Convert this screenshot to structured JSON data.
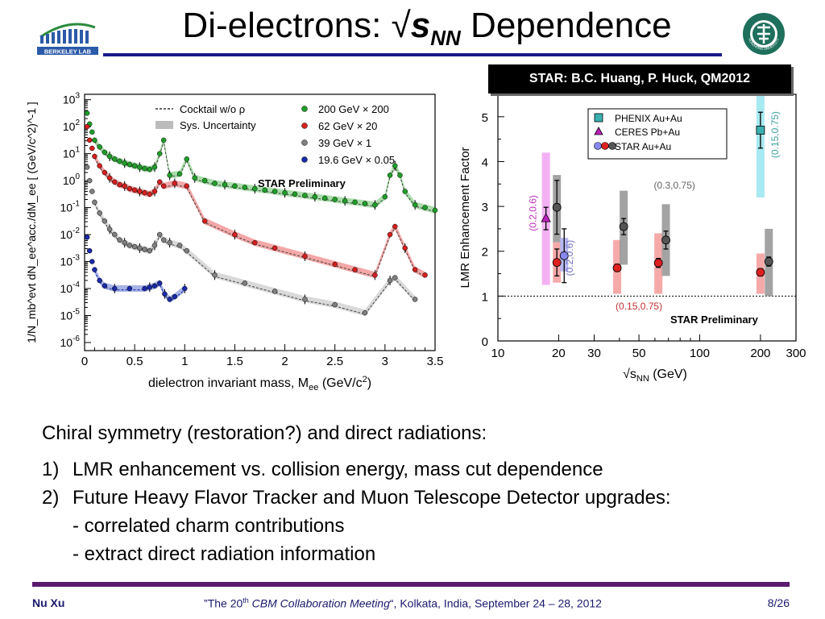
{
  "slide": {
    "title_prefix": "Di-electrons: √",
    "title_s": "s",
    "title_sub": "NN",
    "title_suffix": " Dependence",
    "logo_left_text": "BERKELEY LAB",
    "logo_right_text": "HUAZHONG UNIVERSITY",
    "credit": "STAR: B.C. Huang, P. Huck, QM2012",
    "bullets_intro": "Chiral symmetry (restoration?) and direct radiations:",
    "bullets": [
      {
        "num": "1)",
        "text": "LMR enhancement vs. collision energy, mass cut dependence"
      },
      {
        "num": "2)",
        "text": "Future Heavy Flavor Tracker and Muon Telescope Detector upgrades:"
      }
    ],
    "sub_bullets": [
      "- correlated charm contributions",
      "- extract direct radiation information"
    ],
    "footer_left": "Nu Xu",
    "footer_center_pre": "”The 20",
    "footer_center_sup": "th",
    "footer_center_em": " CBM Collaboration Meeting",
    "footer_center_post": "“, Kolkata, India, September 24 – 28,  2012",
    "footer_right": "8/26"
  },
  "chart_data": [
    {
      "type": "scatter",
      "xlabel": "dielectron invariant mass, M",
      "xlabel_sub": "ee",
      "xlabel_unit": " (GeV/c",
      "xlabel_sup": "2",
      "xlabel_close": ")",
      "ylabel": "1/N_mb^evt dN_ee^acc./dM_ee [ (GeV/c^2)^-1 ]",
      "xlim": [
        0,
        3.5
      ],
      "ylim_log10": [
        -6.3,
        3.2
      ],
      "log_y": true,
      "x_ticks": [
        "0",
        "0.5",
        "1",
        "1.5",
        "2",
        "2.5",
        "3",
        "3.5"
      ],
      "y_ticks": [
        3,
        2,
        1,
        0,
        -1,
        -2,
        -3,
        -4,
        -5,
        -6
      ],
      "annotation": "STAR Preliminary",
      "legend_left": [
        {
          "label": "Cocktail w/o ρ",
          "style": "dashed",
          "color": "#333333"
        },
        {
          "label": "Sys. Uncertainty",
          "style": "band",
          "color": "#bbbbbb"
        }
      ],
      "series": [
        {
          "name": "200 GeV × 200",
          "color": "#1f9e2a",
          "band": "#8fd38f",
          "x": [
            0.025,
            0.05,
            0.075,
            0.1,
            0.15,
            0.2,
            0.25,
            0.3,
            0.35,
            0.4,
            0.45,
            0.5,
            0.55,
            0.6,
            0.65,
            0.7,
            0.75,
            0.79,
            0.85,
            0.95,
            1.02,
            1.1,
            1.2,
            1.3,
            1.4,
            1.5,
            1.6,
            1.7,
            1.8,
            1.9,
            2.0,
            2.1,
            2.2,
            2.3,
            2.4,
            2.5,
            2.6,
            2.7,
            2.8,
            2.9,
            3.0,
            3.05,
            3.1,
            3.15,
            3.2,
            3.3,
            3.4,
            3.5
          ],
          "logy": [
            2.5,
            2.1,
            1.8,
            1.5,
            1.25,
            1.05,
            0.9,
            0.8,
            0.72,
            0.65,
            0.6,
            0.55,
            0.5,
            0.45,
            0.42,
            0.5,
            1.0,
            1.5,
            0.2,
            0.25,
            0.8,
            0.1,
            0.0,
            -0.1,
            -0.15,
            -0.2,
            -0.25,
            -0.3,
            -0.35,
            -0.4,
            -0.45,
            -0.5,
            -0.55,
            -0.6,
            -0.65,
            -0.7,
            -0.75,
            -0.8,
            -0.85,
            -0.9,
            -0.6,
            0.2,
            0.55,
            0.2,
            -0.4,
            -0.9,
            -1.0,
            -1.1
          ]
        },
        {
          "name": "62 GeV × 20",
          "color": "#d42020",
          "band": "#f08a8a",
          "x": [
            0.025,
            0.05,
            0.075,
            0.1,
            0.15,
            0.2,
            0.25,
            0.3,
            0.35,
            0.4,
            0.45,
            0.5,
            0.55,
            0.6,
            0.65,
            0.7,
            0.75,
            0.79,
            0.9,
            1.02,
            1.2,
            1.5,
            1.7,
            1.9,
            2.2,
            2.5,
            2.7,
            2.9,
            3.05,
            3.1,
            3.2,
            3.3,
            3.4
          ],
          "logy": [
            2.0,
            1.5,
            1.2,
            0.9,
            0.55,
            0.3,
            0.1,
            -0.05,
            -0.15,
            -0.2,
            -0.3,
            -0.35,
            -0.4,
            -0.45,
            -0.5,
            -0.4,
            -0.05,
            -0.2,
            -0.1,
            -0.2,
            -1.5,
            -2.0,
            -2.3,
            -2.5,
            -2.8,
            -3.1,
            -3.3,
            -3.5,
            -2.0,
            -1.7,
            -2.5,
            -3.3,
            -3.5
          ]
        },
        {
          "name": "39 GeV × 1",
          "color": "#808080",
          "band": "#cccccc",
          "x": [
            0.025,
            0.05,
            0.075,
            0.1,
            0.15,
            0.2,
            0.25,
            0.3,
            0.35,
            0.4,
            0.45,
            0.5,
            0.55,
            0.6,
            0.65,
            0.7,
            0.75,
            0.79,
            0.85,
            0.95,
            1.02,
            1.3,
            1.6,
            1.9,
            2.2,
            2.5,
            2.8,
            3.05,
            3.1,
            3.3
          ],
          "logy": [
            0.5,
            0.0,
            -0.4,
            -0.8,
            -1.2,
            -1.5,
            -1.8,
            -2.0,
            -2.2,
            -2.3,
            -2.4,
            -2.45,
            -2.5,
            -2.55,
            -2.6,
            -2.4,
            -2.0,
            -2.2,
            -2.3,
            -2.4,
            -2.6,
            -3.5,
            -3.8,
            -4.1,
            -4.4,
            -4.6,
            -4.9,
            -3.7,
            -3.6,
            -4.4
          ]
        },
        {
          "name": "19.6 GeV × 0.05",
          "color": "#1a2aa8",
          "band": "#8899dd",
          "x": [
            0.025,
            0.05,
            0.075,
            0.1,
            0.15,
            0.2,
            0.3,
            0.45,
            0.6,
            0.65,
            0.7,
            0.75,
            0.8,
            0.85,
            0.9,
            1.0
          ],
          "logy": [
            -2.1,
            -2.6,
            -3.0,
            -3.3,
            -3.7,
            -3.9,
            -4.0,
            -4.0,
            -4.0,
            -3.95,
            -3.9,
            -3.8,
            -4.2,
            -4.4,
            -4.3,
            -4.0
          ]
        }
      ]
    },
    {
      "type": "scatter",
      "xlabel": "√s",
      "xlabel_sub": "NN",
      "xlabel_unit": " (GeV)",
      "ylabel": "LMR Enhancement Factor",
      "log_x": true,
      "xlim": [
        10,
        300
      ],
      "ylim": [
        0,
        5.5
      ],
      "x_ticks": [
        10,
        20,
        30,
        50,
        100,
        200,
        300
      ],
      "y_ticks": [
        0,
        1,
        2,
        3,
        4,
        5
      ],
      "reference_line_y": 1,
      "annotation": "STAR Preliminary",
      "range_labels": [
        {
          "text": "(0.2,0.6)",
          "x": 15.5,
          "y": 2.85,
          "color": "#c030c0",
          "rotate": true
        },
        {
          "text": "(0.2,0.6)",
          "x": 23.5,
          "y": 1.85,
          "color": "#7070c0",
          "rotate": true
        },
        {
          "text": "(0.3,0.75)",
          "x": 75,
          "y": 3.4,
          "color": "#666666",
          "rotate": false
        },
        {
          "text": "(0.15,0.75)",
          "x": 50,
          "y": 0.7,
          "color": "#c03030",
          "rotate": false
        },
        {
          "text": "(0.15,0.75)",
          "x": 245,
          "y": 4.6,
          "color": "#40a0a0",
          "rotate": true
        }
      ],
      "legend": [
        {
          "label": "PHENIX Au+Au",
          "marker": "square",
          "color": "#3ab0b0"
        },
        {
          "label": "CERES Pb+Au",
          "marker": "triangle",
          "color": "#c020c0"
        },
        {
          "label": "STAR Au+Au",
          "marker": "circles",
          "colors": [
            "#8888ee",
            "#dd2020",
            "#555555"
          ]
        }
      ],
      "points": [
        {
          "series": "CERES Pb+Au",
          "x": 17.3,
          "y": 2.73,
          "err": 0.25,
          "sys_lo": 1.25,
          "sys_hi": 4.2,
          "marker": "triangle",
          "color": "#c020c0",
          "band": "#f2a8f2"
        },
        {
          "series": "STAR Au+Au",
          "x": 19.6,
          "y": 1.75,
          "err": 0.3,
          "sys_lo": 1.3,
          "sys_hi": 2.2,
          "marker": "circle",
          "color": "#dd2020",
          "band": "#f5a0a0"
        },
        {
          "series": "STAR Au+Au",
          "x": 19.6,
          "y": 2.98,
          "err": 0.6,
          "sys_lo": 2.2,
          "sys_hi": 3.7,
          "marker": "circle",
          "color": "#555555",
          "band": "#999999"
        },
        {
          "series": "STAR Au+Au",
          "x": 21.3,
          "y": 1.9,
          "err": 0.6,
          "sys_lo": 1.55,
          "sys_hi": 2.3,
          "marker": "circle",
          "color": "#8888ee",
          "band": "#b0b0f0"
        },
        {
          "series": "STAR Au+Au",
          "x": 39,
          "y": 1.63,
          "err": 0.08,
          "sys_lo": 1.05,
          "sys_hi": 2.25,
          "marker": "circle",
          "color": "#dd2020",
          "band": "#f5a0a0"
        },
        {
          "series": "STAR Au+Au",
          "x": 42,
          "y": 2.55,
          "err": 0.18,
          "sys_lo": 1.7,
          "sys_hi": 3.35,
          "marker": "circle",
          "color": "#555555",
          "band": "#999999"
        },
        {
          "series": "STAR Au+Au",
          "x": 62.4,
          "y": 1.74,
          "err": 0.1,
          "sys_lo": 1.05,
          "sys_hi": 2.4,
          "marker": "circle",
          "color": "#dd2020",
          "band": "#f5a0a0"
        },
        {
          "series": "STAR Au+Au",
          "x": 68,
          "y": 2.25,
          "err": 0.2,
          "sys_lo": 1.45,
          "sys_hi": 3.05,
          "marker": "circle",
          "color": "#555555",
          "band": "#999999"
        },
        {
          "series": "PHENIX Au+Au",
          "x": 200,
          "y": 4.7,
          "err": 0.4,
          "sys_lo": 3.2,
          "sys_hi": 5.5,
          "marker": "square",
          "color": "#3ab0b0",
          "band": "#9fe8f0"
        },
        {
          "series": "STAR Au+Au",
          "x": 200,
          "y": 1.53,
          "err": 0.08,
          "sys_lo": 1.05,
          "sys_hi": 1.95,
          "marker": "circle",
          "color": "#dd2020",
          "band": "#f5a0a0"
        },
        {
          "series": "STAR Au+Au",
          "x": 220,
          "y": 1.77,
          "err": 0.1,
          "sys_lo": 1.0,
          "sys_hi": 2.5,
          "marker": "circle",
          "color": "#555555",
          "band": "#999999"
        }
      ]
    }
  ]
}
